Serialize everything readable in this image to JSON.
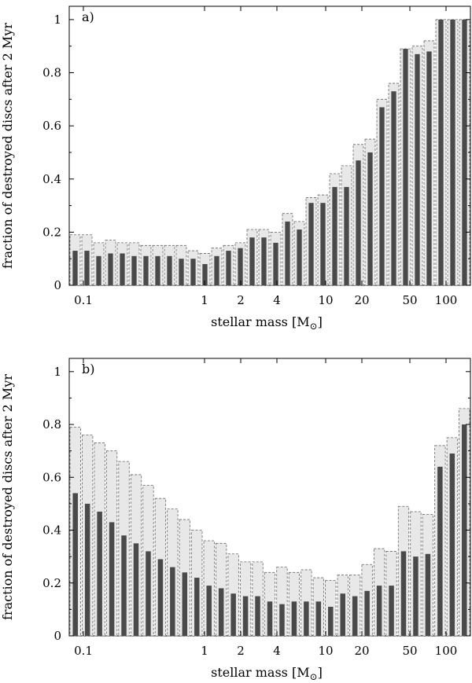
{
  "chart_data": [
    {
      "type": "bar",
      "panel_label": "a)",
      "xlabel": "stellar mass [M",
      "xlabel_sub": "⊙",
      "xlabel_close": "]",
      "ylabel": "fraction of destroyed discs after 2 Myr",
      "xscale": "log",
      "ylim": [
        0,
        1.05
      ],
      "yticks": [
        "0",
        "0.2",
        "0.4",
        "0.6",
        "0.8",
        "1"
      ],
      "xticks": [
        "0.1",
        "1",
        "2",
        "4",
        "10",
        "20",
        "50",
        "100"
      ],
      "grid": false,
      "series": [
        {
          "values": [
            0.19,
            0.19,
            0.16,
            0.17,
            0.16,
            0.16,
            0.15,
            0.15,
            0.15,
            0.15,
            0.13,
            0.12,
            0.14,
            0.15,
            0.16,
            0.21,
            0.21,
            0.2,
            0.27,
            0.24,
            0.33,
            0.34,
            0.42,
            0.45,
            0.53,
            0.55,
            0.7,
            0.76,
            0.89,
            0.9,
            0.92,
            1.0,
            1.0,
            1.0
          ]
        },
        {
          "values": [
            0.13,
            0.13,
            0.11,
            0.12,
            0.12,
            0.11,
            0.11,
            0.11,
            0.11,
            0.1,
            0.1,
            0.08,
            0.11,
            0.13,
            0.14,
            0.18,
            0.18,
            0.16,
            0.24,
            0.21,
            0.31,
            0.31,
            0.37,
            0.37,
            0.47,
            0.5,
            0.67,
            0.73,
            0.89,
            0.87,
            0.88,
            1.0,
            1.0,
            1.0
          ]
        }
      ]
    },
    {
      "type": "bar",
      "panel_label": "b)",
      "xlabel": "stellar mass [M",
      "xlabel_sub": "⊙",
      "xlabel_close": "]",
      "ylabel": "fraction of destroyed discs after 2 Myr",
      "xscale": "log",
      "ylim": [
        0,
        1.05
      ],
      "yticks": [
        "0",
        "0.2",
        "0.4",
        "0.6",
        "0.8",
        "1"
      ],
      "xticks": [
        "0.1",
        "1",
        "2",
        "4",
        "10",
        "20",
        "50",
        "100"
      ],
      "grid": false,
      "series": [
        {
          "values": [
            0.79,
            0.76,
            0.73,
            0.7,
            0.66,
            0.61,
            0.57,
            0.52,
            0.48,
            0.44,
            0.4,
            0.36,
            0.35,
            0.31,
            0.28,
            0.28,
            0.24,
            0.26,
            0.24,
            0.25,
            0.22,
            0.21,
            0.23,
            0.23,
            0.27,
            0.33,
            0.32,
            0.49,
            0.47,
            0.46,
            0.72,
            0.75,
            0.86
          ]
        },
        {
          "values": [
            0.54,
            0.5,
            0.47,
            0.43,
            0.38,
            0.35,
            0.32,
            0.29,
            0.26,
            0.24,
            0.22,
            0.19,
            0.18,
            0.16,
            0.15,
            0.15,
            0.13,
            0.12,
            0.13,
            0.13,
            0.13,
            0.11,
            0.16,
            0.15,
            0.17,
            0.19,
            0.19,
            0.32,
            0.3,
            0.31,
            0.64,
            0.69,
            0.8
          ]
        }
      ]
    }
  ],
  "colors": {
    "light_bar": "#e8e8e8",
    "dark_bar": "#4a4a4a",
    "dash": "#666666"
  }
}
